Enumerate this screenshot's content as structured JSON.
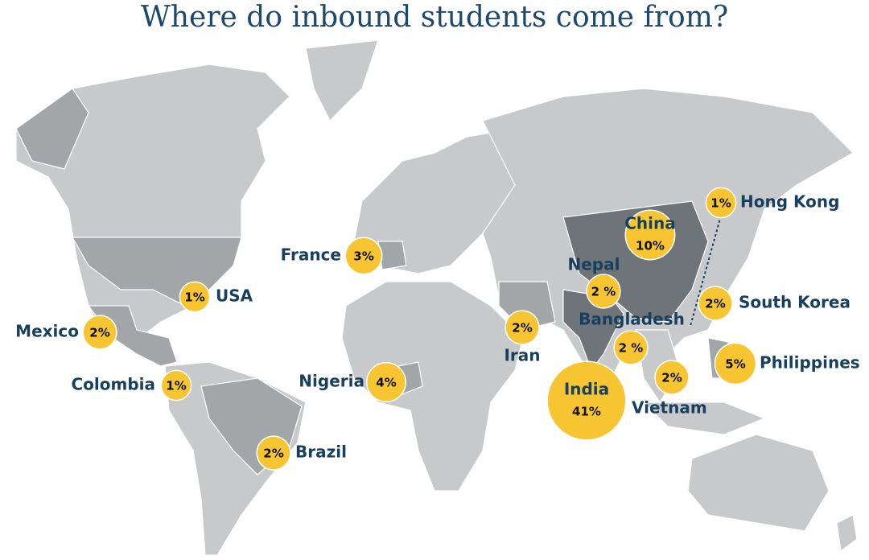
{
  "title": "Where do inbound students come from?",
  "countries": [
    {
      "name": "Hong Kong",
      "value": 1,
      "value_label": "1%"
    },
    {
      "name": "China",
      "value": 10,
      "value_label": "10%"
    },
    {
      "name": "Nepal",
      "value": 2,
      "value_label": "2 %"
    },
    {
      "name": "South Korea",
      "value": 2,
      "value_label": "2%"
    },
    {
      "name": "Bangladesh",
      "value": 2,
      "value_label": "2 %"
    },
    {
      "name": "Philippines",
      "value": 5,
      "value_label": "5%"
    },
    {
      "name": "Vietnam",
      "value": 2,
      "value_label": "2%"
    },
    {
      "name": "India",
      "value": 41,
      "value_label": "41%"
    },
    {
      "name": "Iran",
      "value": 2,
      "value_label": "2%"
    },
    {
      "name": "France",
      "value": 3,
      "value_label": "3%"
    },
    {
      "name": "USA",
      "value": 1,
      "value_label": "1%"
    },
    {
      "name": "Mexico",
      "value": 2,
      "value_label": "2%"
    },
    {
      "name": "Colombia",
      "value": 1,
      "value_label": "1%"
    },
    {
      "name": "Nigeria",
      "value": 4,
      "value_label": "4%"
    },
    {
      "name": "Brazil",
      "value": 2,
      "value_label": "2%"
    }
  ]
}
